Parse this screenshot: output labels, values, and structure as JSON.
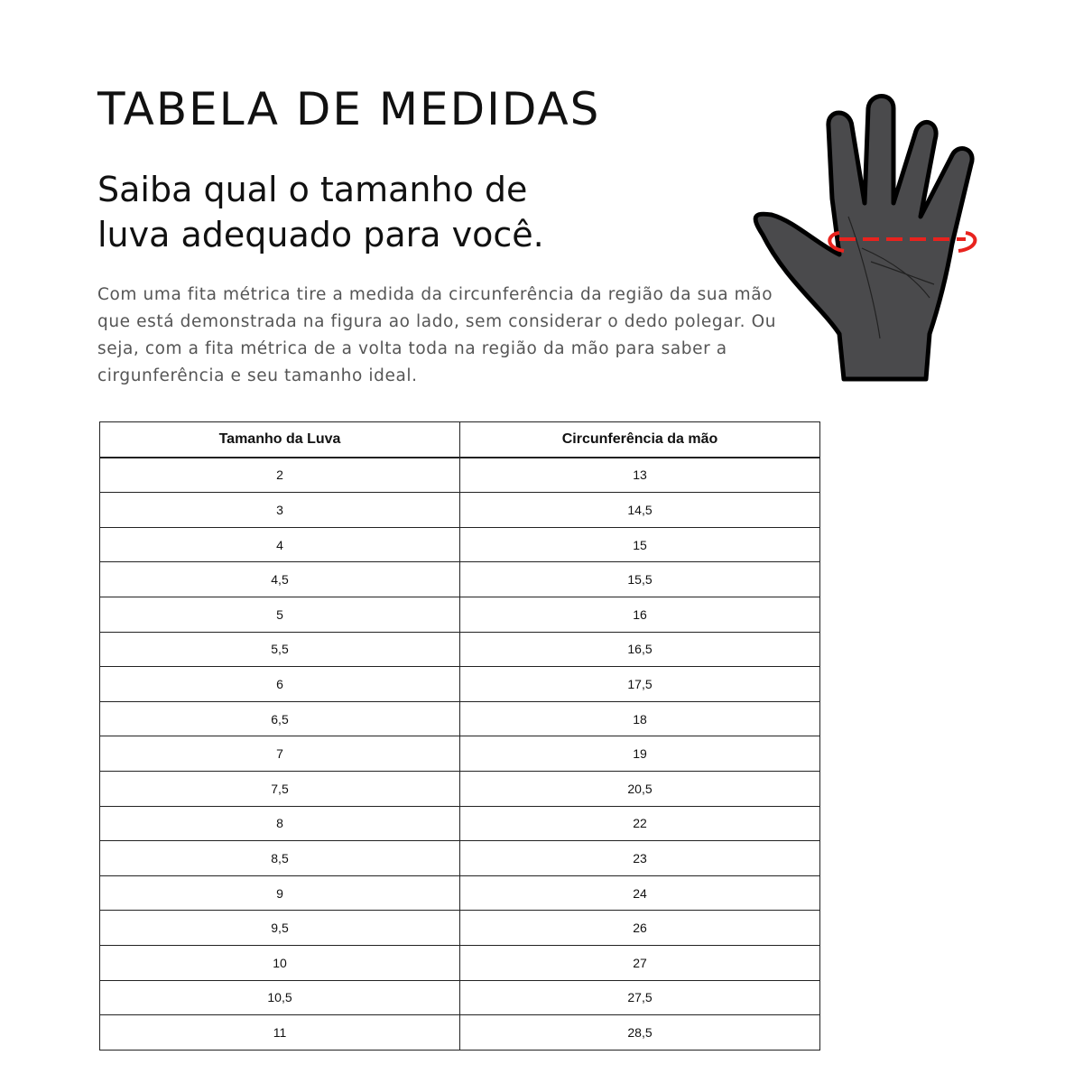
{
  "title": "TABELA DE MEDIDAS",
  "subtitle": {
    "line1": "Saiba qual o tamanho de",
    "line2": "luva adequado para você."
  },
  "description": "Com uma fita métrica tire a medida da circunferência da região da sua mão que está demonstrada na figura ao lado, sem considerar o dedo polegar. Ou seja, com a fita métrica de a volta toda na região da mão para saber a cirgunferência e seu tamanho ideal.",
  "illustration": {
    "icon": "hand-measurement-icon",
    "glove_color": "#4a4a4c",
    "tape_color": "#e8231e"
  },
  "table": {
    "headers": [
      "Tamanho da Luva",
      "Circunferência da mão"
    ],
    "rows": [
      [
        "2",
        "13"
      ],
      [
        "3",
        "14,5"
      ],
      [
        "4",
        "15"
      ],
      [
        "4,5",
        "15,5"
      ],
      [
        "5",
        "16"
      ],
      [
        "5,5",
        "16,5"
      ],
      [
        "6",
        "17,5"
      ],
      [
        "6,5",
        "18"
      ],
      [
        "7",
        "19"
      ],
      [
        "7,5",
        "20,5"
      ],
      [
        "8",
        "22"
      ],
      [
        "8,5",
        "23"
      ],
      [
        "9",
        "24"
      ],
      [
        "9,5",
        "26"
      ],
      [
        "10",
        "27"
      ],
      [
        "10,5",
        "27,5"
      ],
      [
        "11",
        "28,5"
      ]
    ]
  }
}
